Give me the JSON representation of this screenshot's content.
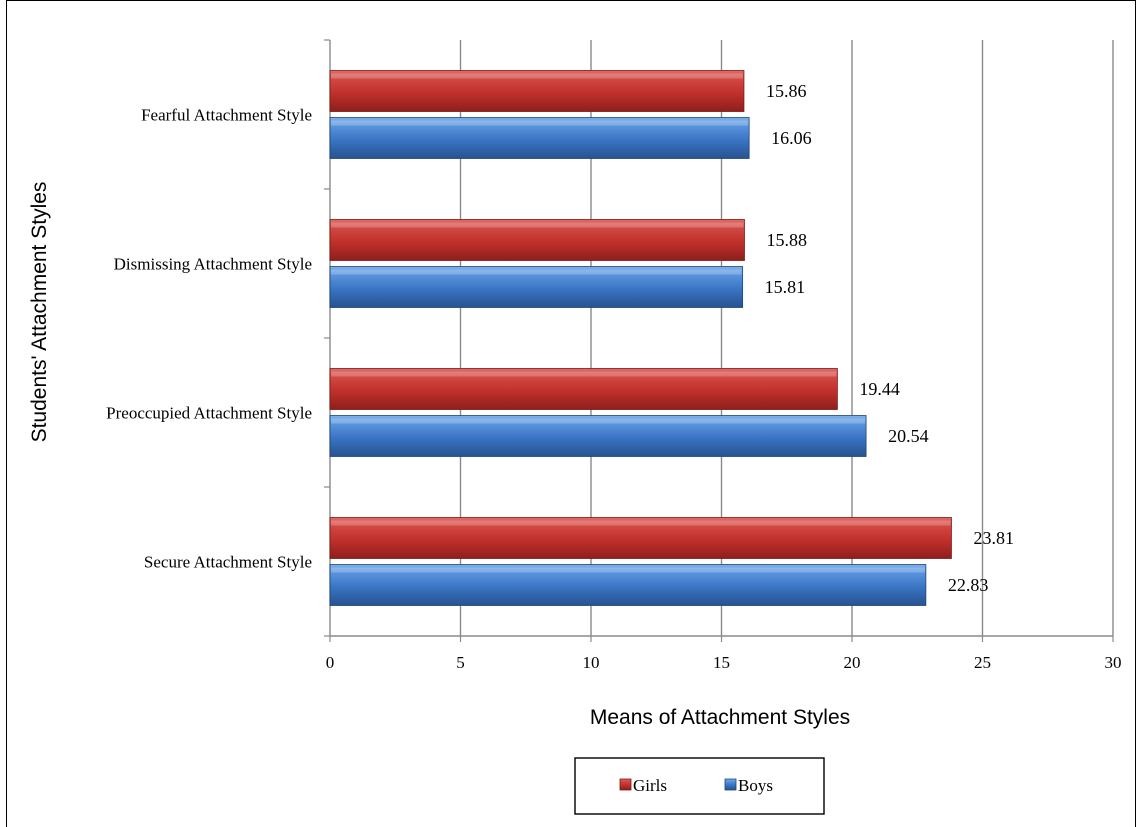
{
  "chart_data": {
    "type": "bar",
    "orientation": "horizontal",
    "categories": [
      "Secure Attachment Style",
      "Preoccupied Attachment Style",
      "Dismissing Attachment Style",
      "Fearful Attachment Style"
    ],
    "series": [
      {
        "name": "Boys",
        "values": [
          22.83,
          20.54,
          15.81,
          16.06
        ],
        "color": "#3a74c4"
      },
      {
        "name": "Girls",
        "values": [
          23.81,
          19.44,
          15.88,
          15.86
        ],
        "color": "#c0392b"
      }
    ],
    "data_labels": {
      "Boys": [
        "22.83",
        "20.54",
        "15.81",
        "16.06"
      ],
      "Girls": [
        "23.81",
        "19.44",
        "15.88",
        "15.86"
      ]
    },
    "xlabel": "Means of Attachment Styles",
    "ylabel": "Students' Attachment Styles",
    "xlim": [
      0,
      30
    ],
    "xticks": [
      "0",
      "5",
      "10",
      "15",
      "20",
      "25",
      "30"
    ],
    "grid": "vertical",
    "legend": {
      "position": "bottom",
      "entries": [
        "Girls",
        "Boys"
      ]
    }
  }
}
